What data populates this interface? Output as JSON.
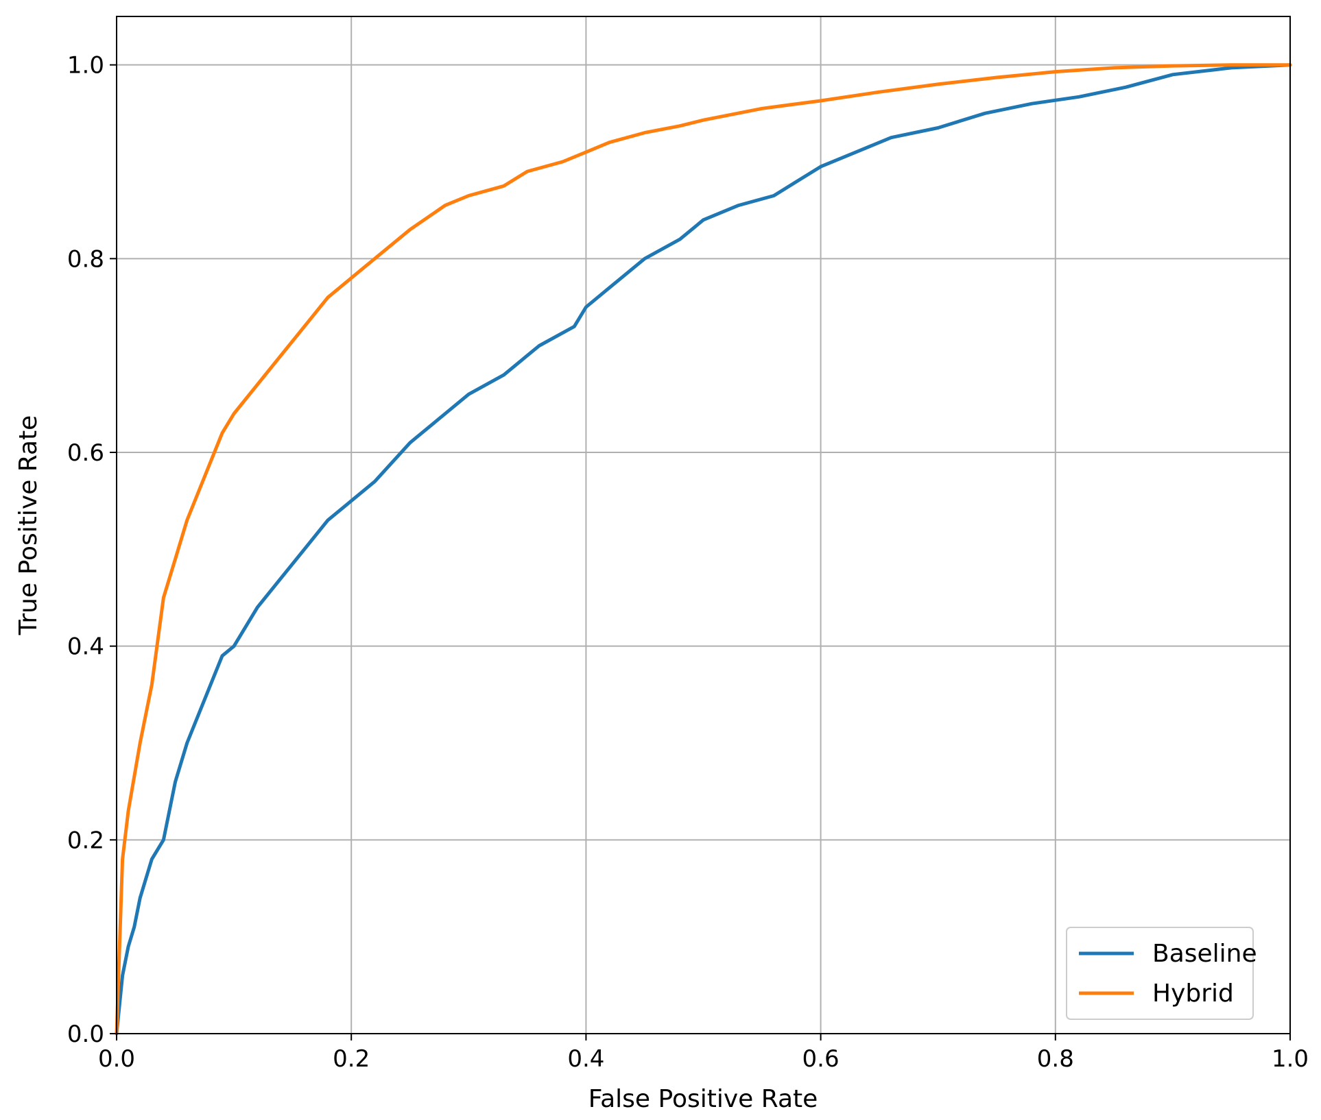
{
  "chart_data": {
    "type": "line",
    "title": "",
    "xlabel": "False Positive Rate",
    "ylabel": "True Positive Rate",
    "xlim": [
      0.0,
      1.0
    ],
    "ylim": [
      0.0,
      1.05
    ],
    "xticks": [
      "0.0",
      "0.2",
      "0.4",
      "0.6",
      "0.8",
      "1.0"
    ],
    "yticks": [
      "0.0",
      "0.2",
      "0.4",
      "0.6",
      "0.8",
      "1.0"
    ],
    "grid": true,
    "legend_position": "lower-right",
    "series": [
      {
        "name": "Baseline",
        "color": "#1f77b4",
        "x": [
          0.0,
          0.005,
          0.01,
          0.015,
          0.02,
          0.03,
          0.04,
          0.05,
          0.06,
          0.07,
          0.08,
          0.09,
          0.1,
          0.12,
          0.14,
          0.16,
          0.18,
          0.2,
          0.22,
          0.25,
          0.28,
          0.3,
          0.33,
          0.36,
          0.39,
          0.4,
          0.42,
          0.45,
          0.48,
          0.5,
          0.53,
          0.56,
          0.58,
          0.6,
          0.63,
          0.66,
          0.7,
          0.74,
          0.78,
          0.82,
          0.86,
          0.9,
          0.95,
          1.0
        ],
        "y": [
          0.0,
          0.06,
          0.09,
          0.11,
          0.14,
          0.18,
          0.2,
          0.26,
          0.3,
          0.33,
          0.36,
          0.39,
          0.4,
          0.44,
          0.47,
          0.5,
          0.53,
          0.55,
          0.57,
          0.61,
          0.64,
          0.66,
          0.68,
          0.71,
          0.73,
          0.75,
          0.77,
          0.8,
          0.82,
          0.84,
          0.855,
          0.865,
          0.88,
          0.895,
          0.91,
          0.925,
          0.935,
          0.95,
          0.96,
          0.967,
          0.977,
          0.99,
          0.997,
          1.0
        ]
      },
      {
        "name": "Hybrid",
        "color": "#ff7f0e",
        "x": [
          0.0,
          0.005,
          0.01,
          0.02,
          0.03,
          0.04,
          0.05,
          0.06,
          0.07,
          0.08,
          0.09,
          0.1,
          0.12,
          0.14,
          0.16,
          0.18,
          0.2,
          0.22,
          0.25,
          0.28,
          0.3,
          0.33,
          0.35,
          0.38,
          0.4,
          0.42,
          0.45,
          0.48,
          0.5,
          0.55,
          0.6,
          0.65,
          0.7,
          0.75,
          0.8,
          0.85,
          0.9,
          0.95,
          1.0
        ],
        "y": [
          0.0,
          0.18,
          0.23,
          0.3,
          0.36,
          0.45,
          0.49,
          0.53,
          0.56,
          0.59,
          0.62,
          0.64,
          0.67,
          0.7,
          0.73,
          0.76,
          0.78,
          0.8,
          0.83,
          0.855,
          0.865,
          0.875,
          0.89,
          0.9,
          0.91,
          0.92,
          0.93,
          0.937,
          0.943,
          0.955,
          0.963,
          0.972,
          0.98,
          0.987,
          0.993,
          0.997,
          0.999,
          1.0,
          1.0
        ]
      }
    ]
  }
}
